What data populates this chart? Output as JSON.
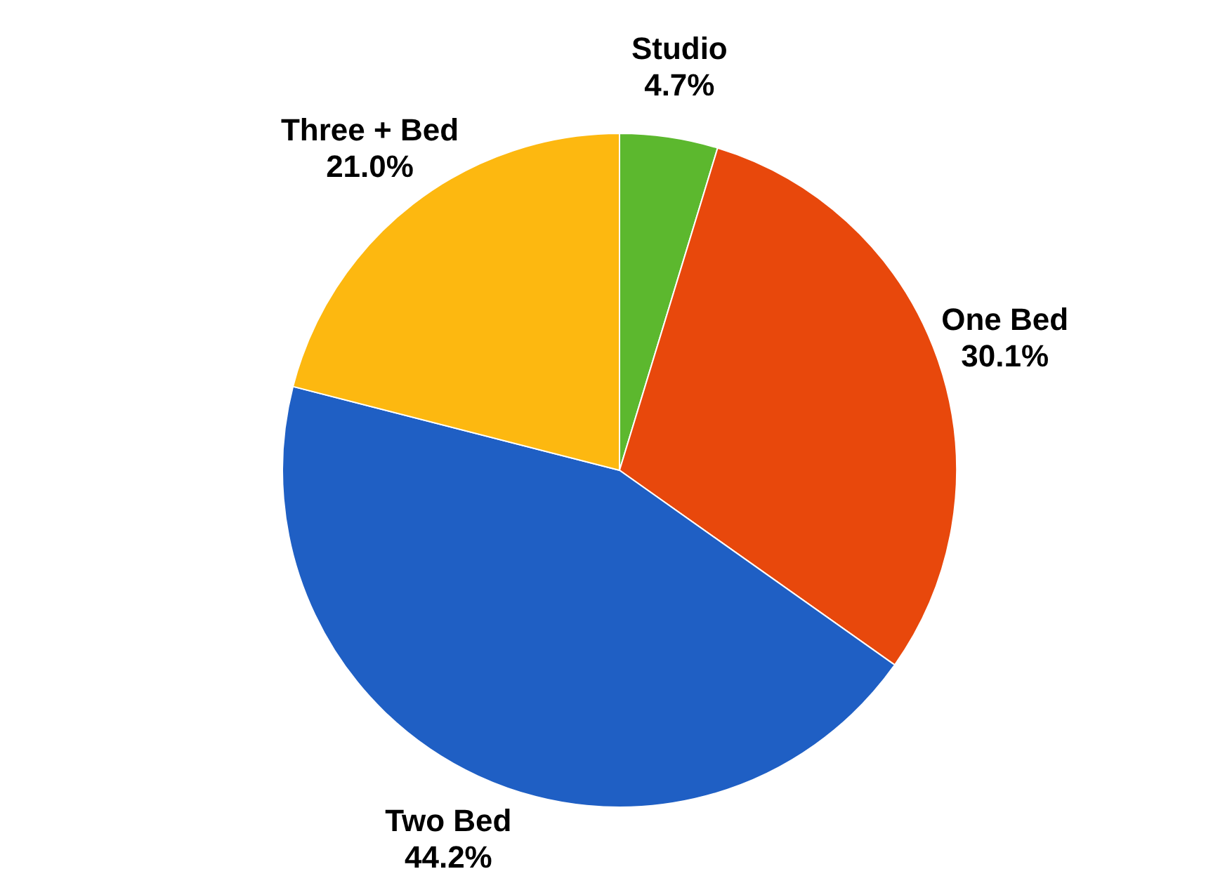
{
  "chart_data": {
    "type": "pie",
    "categories": [
      "Studio",
      "One Bed",
      "Two Bed",
      "Three + Bed"
    ],
    "values": [
      4.7,
      30.1,
      44.2,
      21.0
    ],
    "value_labels": [
      "4.7%",
      "30.1%",
      "44.2%",
      "21.0%"
    ],
    "colors": [
      "#5cb82e",
      "#e8480c",
      "#1f5fc4",
      "#fdb810"
    ]
  }
}
